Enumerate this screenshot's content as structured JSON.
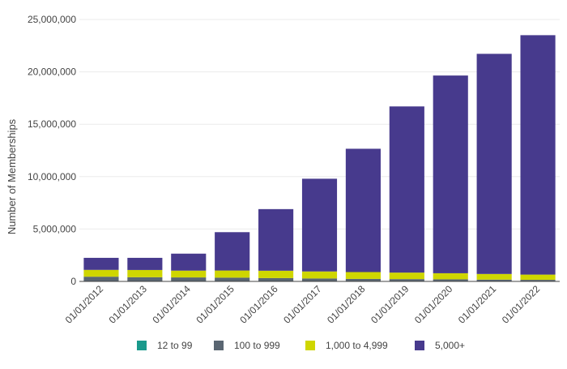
{
  "chart_data": {
    "type": "bar",
    "stacked": true,
    "title": "",
    "xlabel": "",
    "ylabel": "Number of Memberships",
    "ylim": [
      0,
      25000000
    ],
    "y_ticks": [
      0,
      5000000,
      10000000,
      15000000,
      20000000,
      25000000
    ],
    "y_tick_labels": [
      "0",
      "5,000,000",
      "10,000,000",
      "15,000,000",
      "20,000,000",
      "25,000,000"
    ],
    "grid": true,
    "legend_position": "bottom",
    "categories": [
      "01/01/2012",
      "01/01/2013",
      "01/01/2014",
      "01/01/2015",
      "01/01/2016",
      "01/01/2017",
      "01/01/2018",
      "01/01/2019",
      "01/01/2020",
      "01/01/2021",
      "01/01/2022"
    ],
    "series": [
      {
        "name": "12 to 99",
        "color": "#1a9a8c",
        "values": [
          20000,
          20000,
          20000,
          20000,
          20000,
          20000,
          20000,
          20000,
          20000,
          20000,
          20000
        ]
      },
      {
        "name": "100 to 999",
        "color": "#5a6672",
        "values": [
          430000,
          380000,
          360000,
          340000,
          300000,
          260000,
          220000,
          200000,
          180000,
          150000,
          130000
        ]
      },
      {
        "name": "1,000 to 4,999",
        "color": "#cfd600",
        "values": [
          650000,
          690000,
          650000,
          680000,
          700000,
          670000,
          650000,
          620000,
          580000,
          540000,
          500000
        ]
      },
      {
        "name": "5,000+",
        "color": "#473a8d",
        "values": [
          1150000,
          1160000,
          1620000,
          3660000,
          5880000,
          8850000,
          11770000,
          15860000,
          18870000,
          21010000,
          22850000
        ]
      }
    ]
  }
}
